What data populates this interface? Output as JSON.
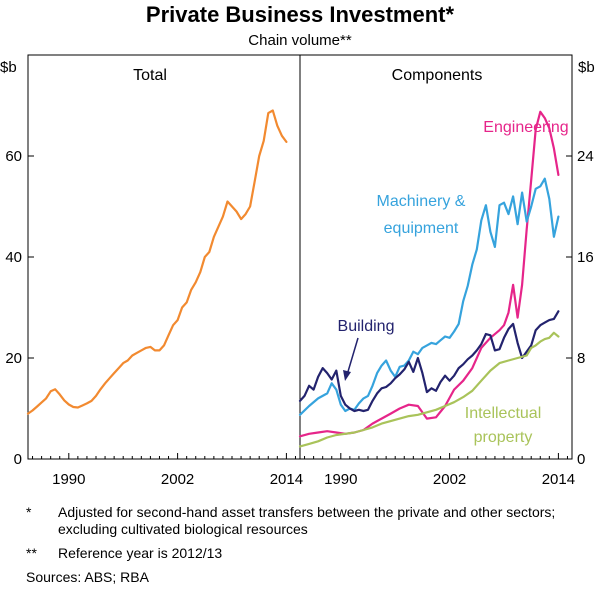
{
  "title": "Private Business Investment*",
  "subtitle": "Chain volume**",
  "footnotes": [
    {
      "marker": "*",
      "text": "Adjusted for second-hand asset transfers between the private and other sectors; excluding cultivated biological resources"
    },
    {
      "marker": "**",
      "text": "Reference year is 2012/13"
    }
  ],
  "sources": "Sources:   ABS; RBA",
  "chart_data": [
    {
      "type": "line",
      "panel_title": "Total",
      "ylabel": "$b",
      "ylim": [
        0,
        80
      ],
      "yticks": [
        0,
        20,
        40,
        60
      ],
      "xlim": [
        1985.5,
        2015.5
      ],
      "xticks": [
        1990,
        2002,
        2014
      ],
      "series": [
        {
          "name": "",
          "color": "#f28a30",
          "x": [
            1985.5,
            1986,
            1986.5,
            1987,
            1987.5,
            1988,
            1988.5,
            1989,
            1989.5,
            1990,
            1990.5,
            1991,
            1991.5,
            1992,
            1992.5,
            1993,
            1993.5,
            1994,
            1994.5,
            1995,
            1995.5,
            1996,
            1996.5,
            1997,
            1997.5,
            1998,
            1998.5,
            1999,
            1999.5,
            2000,
            2000.5,
            2001,
            2001.5,
            2002,
            2002.5,
            2003,
            2003.5,
            2004,
            2004.5,
            2005,
            2005.5,
            2006,
            2006.5,
            2007,
            2007.5,
            2008,
            2008.5,
            2009,
            2009.5,
            2010,
            2010.5,
            2011,
            2011.5,
            2012,
            2012.5,
            2013,
            2013.5,
            2014
          ],
          "values": [
            9,
            9.6,
            10.4,
            11.2,
            12,
            13.4,
            13.8,
            12.8,
            11.6,
            10.8,
            10.3,
            10.2,
            10.6,
            11,
            11.5,
            12.5,
            13.8,
            15,
            16,
            17,
            18,
            19,
            19.5,
            20.5,
            21,
            21.5,
            22,
            22.2,
            21.5,
            21.5,
            22.5,
            24.5,
            26.5,
            27.5,
            30,
            31,
            33.5,
            35,
            37,
            40,
            41,
            44,
            46,
            48,
            51,
            50,
            49,
            47.5,
            48.5,
            50,
            55,
            60,
            63,
            68.5,
            69,
            66,
            64,
            62.8
          ]
        }
      ]
    },
    {
      "type": "line",
      "panel_title": "Components",
      "ylabel": "$b",
      "ylim": [
        0,
        32
      ],
      "yticks": [
        0,
        8,
        16,
        24
      ],
      "xlim": [
        1985.5,
        2015.5
      ],
      "xticks": [
        1990,
        2002,
        2014
      ],
      "series": [
        {
          "name": "Engineering",
          "color": "#e6258a",
          "x": [
            1985.5,
            1986.5,
            1987.5,
            1988.5,
            1989.5,
            1990.5,
            1991.5,
            1992.5,
            1993.5,
            1994.5,
            1995.5,
            1996.5,
            1997.5,
            1998.5,
            1999.5,
            2000.5,
            2001.5,
            2002.5,
            2003.5,
            2004.5,
            2005.5,
            2006.5,
            2007.5,
            2008,
            2008.5,
            2009,
            2009.5,
            2010,
            2010.5,
            2011,
            2011.5,
            2012,
            2012.5,
            2013,
            2013.5,
            2014
          ],
          "values": [
            1.8,
            2.0,
            2.1,
            2.2,
            2.1,
            2.0,
            2.1,
            2.3,
            2.8,
            3.2,
            3.6,
            4.0,
            4.3,
            4.2,
            3.2,
            3.3,
            4.2,
            5.5,
            6.2,
            7.2,
            8.8,
            9.6,
            10.2,
            10.6,
            11.6,
            13.8,
            11.2,
            13.8,
            18.2,
            22.1,
            26.1,
            27.5,
            27,
            26.2,
            24.6,
            22.5
          ]
        },
        {
          "name": "Machinery & equipment",
          "color": "#36a3dd",
          "x": [
            1985.5,
            1986.5,
            1987.5,
            1988.5,
            1989,
            1989.5,
            1990,
            1990.5,
            1991,
            1991.5,
            1992,
            1992.5,
            1993,
            1993.5,
            1994,
            1994.5,
            1995,
            1995.5,
            1996,
            1996.5,
            1997,
            1997.5,
            1998,
            1998.5,
            1999,
            1999.5,
            2000,
            2000.5,
            2001,
            2001.5,
            2002,
            2002.5,
            2003,
            2003.5,
            2004,
            2004.5,
            2005,
            2005.5,
            2006,
            2006.5,
            2007,
            2007.5,
            2008,
            2008.5,
            2009,
            2009.5,
            2010,
            2010.5,
            2011,
            2011.5,
            2012,
            2012.5,
            2013,
            2013.5,
            2014
          ],
          "values": [
            3.5,
            4.2,
            4.8,
            5.2,
            6.0,
            5.5,
            4.3,
            3.8,
            4.0,
            3.9,
            4.4,
            4.8,
            5.0,
            5.8,
            6.8,
            7.4,
            7.8,
            7.0,
            6.5,
            7.3,
            7.4,
            7.8,
            8.5,
            8.3,
            8.8,
            9.0,
            9.2,
            9.1,
            9.4,
            9.7,
            9.6,
            10.1,
            10.7,
            12.5,
            13.7,
            15.4,
            16.6,
            18.9,
            20.1,
            18.0,
            16.8,
            20.1,
            20.3,
            19.4,
            20.8,
            18.6,
            21.1,
            18.8,
            20.0,
            21.4,
            21.6,
            22.2,
            20.6,
            17.6,
            19.2
          ]
        },
        {
          "name": "Building",
          "color": "#23236e",
          "x": [
            1985.5,
            1986,
            1986.5,
            1987,
            1987.5,
            1988,
            1988.5,
            1989,
            1989.5,
            1990,
            1990.5,
            1991,
            1991.5,
            1992,
            1992.5,
            1993,
            1993.5,
            1994,
            1994.5,
            1995,
            1995.5,
            1996,
            1996.5,
            1997,
            1997.5,
            1998,
            1998.5,
            1999,
            1999.5,
            2000,
            2000.5,
            2001,
            2001.5,
            2002,
            2002.5,
            2003,
            2003.5,
            2004,
            2004.5,
            2005,
            2005.5,
            2006,
            2006.5,
            2007,
            2007.5,
            2008,
            2008.5,
            2009,
            2009.5,
            2010,
            2010.5,
            2011,
            2011.5,
            2012,
            2012.5,
            2013,
            2013.5,
            2014
          ],
          "values": [
            4.6,
            5.0,
            5.8,
            5.5,
            6.5,
            7.2,
            6.8,
            6.3,
            7.0,
            5.0,
            4.3,
            4.0,
            3.8,
            3.9,
            3.8,
            3.9,
            4.6,
            5.2,
            5.6,
            5.7,
            6.0,
            6.4,
            6.7,
            7.1,
            7.7,
            6.9,
            8.0,
            6.8,
            5.3,
            5.6,
            5.4,
            6.1,
            6.6,
            6.2,
            6.6,
            7.2,
            7.5,
            7.9,
            8.2,
            8.6,
            9.1,
            9.9,
            9.8,
            8.6,
            8.7,
            9.6,
            10.3,
            10.7,
            9.2,
            8.0,
            8.5,
            9.0,
            10.2,
            10.6,
            10.8,
            11.0,
            11.1,
            11.7
          ]
        },
        {
          "name": "Intellectual property",
          "color": "#a9c35a",
          "x": [
            1985.5,
            1986.5,
            1987.5,
            1988.5,
            1989.5,
            1990.5,
            1991.5,
            1992.5,
            1993.5,
            1994.5,
            1995.5,
            1996.5,
            1997.5,
            1998.5,
            1999.5,
            2000.5,
            2001.5,
            2002.5,
            2003.5,
            2004.5,
            2005.5,
            2006.5,
            2007.5,
            2008.5,
            2009.5,
            2010.5,
            2011,
            2011.5,
            2012,
            2012.5,
            2013,
            2013.5,
            2014
          ],
          "values": [
            1.0,
            1.2,
            1.4,
            1.7,
            1.9,
            2.0,
            2.1,
            2.3,
            2.5,
            2.8,
            3.0,
            3.2,
            3.4,
            3.5,
            3.7,
            3.9,
            4.2,
            4.5,
            4.9,
            5.4,
            6.2,
            7.0,
            7.6,
            7.8,
            8.0,
            8.2,
            8.8,
            9.0,
            9.3,
            9.5,
            9.6,
            10.0,
            9.7
          ]
        }
      ]
    }
  ]
}
